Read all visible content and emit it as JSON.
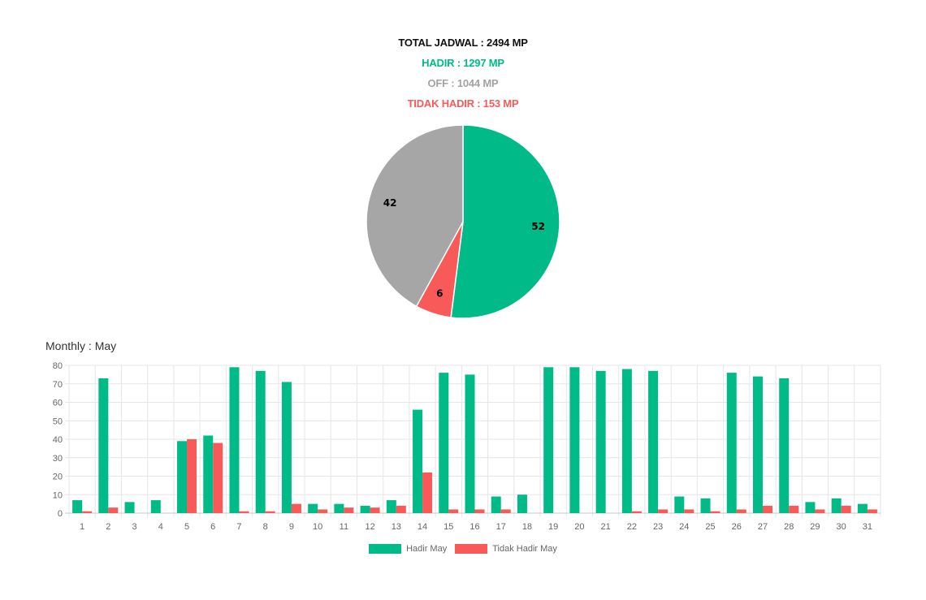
{
  "summary": {
    "total": "TOTAL JADWAL : 2494 MP",
    "hadir": "HADIR : 1297 MP",
    "off": "OFF : 1044 MP",
    "tidak_hadir": "TIDAK HADIR : 153 MP"
  },
  "colors": {
    "hadir": "#00bb87",
    "off": "#a6a6a6",
    "tidak_hadir": "#f85a5a",
    "grid": "#e6e6e6",
    "axis_text": "#666666"
  },
  "chart_data": [
    {
      "type": "pie",
      "slices": [
        {
          "label": "Hadir",
          "value": 52,
          "color": "#00bb87"
        },
        {
          "label": "Tidak Hadir",
          "value": 6,
          "color": "#f85a5a"
        },
        {
          "label": "Off",
          "value": 42,
          "color": "#a6a6a6"
        }
      ],
      "data_labels": [
        "52",
        "6",
        "42"
      ]
    },
    {
      "type": "bar",
      "title": "Monthly : May",
      "categories": [
        "1",
        "2",
        "3",
        "4",
        "5",
        "6",
        "7",
        "8",
        "9",
        "10",
        "11",
        "12",
        "13",
        "14",
        "15",
        "16",
        "17",
        "18",
        "19",
        "20",
        "21",
        "22",
        "23",
        "24",
        "25",
        "26",
        "27",
        "28",
        "29",
        "30",
        "31"
      ],
      "series": [
        {
          "name": "Hadir May",
          "color": "#00bb87",
          "values": [
            7,
            73,
            6,
            7,
            39,
            42,
            79,
            77,
            71,
            5,
            5,
            4,
            7,
            56,
            76,
            75,
            9,
            10,
            79,
            79,
            77,
            78,
            77,
            9,
            8,
            76,
            74,
            73,
            6,
            8,
            5
          ]
        },
        {
          "name": "Tidak Hadir May",
          "color": "#f85a5a",
          "values": [
            1,
            3,
            0,
            0,
            40,
            38,
            1,
            1,
            5,
            2,
            3,
            3,
            4,
            22,
            2,
            2,
            2,
            0,
            0,
            0,
            0,
            1,
            2,
            2,
            1,
            2,
            4,
            4,
            2,
            4,
            2
          ]
        }
      ],
      "ylim": [
        0,
        80
      ],
      "yticks": [
        0,
        10,
        20,
        30,
        40,
        50,
        60,
        70,
        80
      ],
      "grid": true,
      "legend": "bottom"
    }
  ]
}
